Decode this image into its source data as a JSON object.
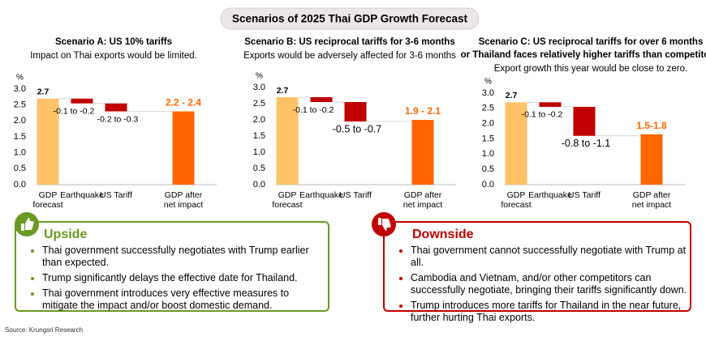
{
  "title": "Scenarios of 2025 Thai GDP Growth Forecast",
  "chart_data": [
    {
      "type": "waterfall",
      "title": [
        "Scenario A: US 10% tariffs"
      ],
      "subtitle": "Impact on Thai exports would be limited.",
      "y_label": "%",
      "categories": [
        "GDP forecast",
        "Earthquake",
        "US Tariff",
        "GDP after net impact"
      ],
      "measures": [
        "absolute",
        "relative",
        "relative",
        "total"
      ],
      "values": [
        2.7,
        -0.15,
        -0.25,
        2.3
      ],
      "value_labels": [
        "2.7",
        "-0.1 to -0.2",
        "-0.2 to -0.3",
        "2.2 - 2.4"
      ],
      "colors": [
        "#ffc266",
        "#c00000",
        "#c00000",
        "#ff6600"
      ],
      "ylim": [
        0,
        3
      ],
      "yticks": [
        {
          "value": 0,
          "label": "0.0"
        },
        0.5,
        {
          "value": 1,
          "label": "1.0"
        },
        1.5,
        {
          "value": 2,
          "label": "2.0"
        },
        2.5,
        {
          "value": 3,
          "label": "3.0"
        }
      ]
    },
    {
      "type": "waterfall",
      "title": [
        "Scenario B: US reciprocal tariffs for 3-6 months"
      ],
      "subtitle": "Exports would be adversely affected for 3-6 months",
      "y_label": "%",
      "categories": [
        "GDP forecast",
        "Earthquake",
        "US Tariff",
        "GDP after net impact"
      ],
      "measures": [
        "absolute",
        "relative",
        "relative",
        "total"
      ],
      "values": [
        2.7,
        -0.15,
        -0.6,
        2.0
      ],
      "value_labels": [
        "2.7",
        "-0.1 to -0.2",
        "-0.5 to -0.7",
        "1.9 - 2.1"
      ],
      "colors": [
        "#ffc266",
        "#c00000",
        "#c00000",
        "#ff6600"
      ],
      "ylim": [
        0,
        3
      ],
      "yticks": [
        {
          "value": 0,
          "label": "0.0"
        },
        0.5,
        {
          "value": 1,
          "label": "1.0"
        },
        1.5,
        {
          "value": 2,
          "label": "2.0"
        },
        2.5,
        {
          "value": 3,
          "label": "3.0"
        }
      ]
    },
    {
      "type": "waterfall",
      "title": [
        "Scenario C: US reciprocal tariffs for over 6 months",
        "or Thailand faces relatively higher tariffs than competitors."
      ],
      "subtitle": "Export growth this year would be close to zero.",
      "y_label": "%",
      "categories": [
        "GDP forecast",
        "Earthquake",
        "US Tariff",
        "GDP after net impact"
      ],
      "measures": [
        "absolute",
        "relative",
        "relative",
        "total"
      ],
      "values": [
        2.7,
        -0.15,
        -0.95,
        1.65
      ],
      "value_labels": [
        "2.7",
        "-0.1 to -0.2",
        "-0.8 to -1.1",
        "1.5-1.8"
      ],
      "colors": [
        "#ffc266",
        "#c00000",
        "#c00000",
        "#ff6600"
      ],
      "ylim": [
        0,
        3
      ],
      "yticks": [
        {
          "value": 0,
          "label": "0.0"
        },
        0.5,
        {
          "value": 1,
          "label": "1.0"
        },
        1.5,
        {
          "value": 2,
          "label": "2.0"
        },
        2.5,
        {
          "value": 3,
          "label": "3.0"
        }
      ]
    }
  ],
  "upside": {
    "title": "Upside",
    "items": [
      "Thai government successfully negotiates with Trump earlier than expected.",
      "Trump significantly delays the effective date for Thailand.",
      "Thai government introduces very effective measures to mitigate the impact and/or boost domestic demand."
    ]
  },
  "downside": {
    "title": "Downside",
    "items": [
      "Thai government cannot successfully negotiate with Trump at all.",
      "Cambodia and Vietnam, and/or other competitors can successfully negotiate, bringing their tariffs significantly down.",
      "Trump introduces more tariffs for Thailand in the near future, further hurting Thai exports."
    ]
  },
  "source": "Source: Krungsri Research"
}
